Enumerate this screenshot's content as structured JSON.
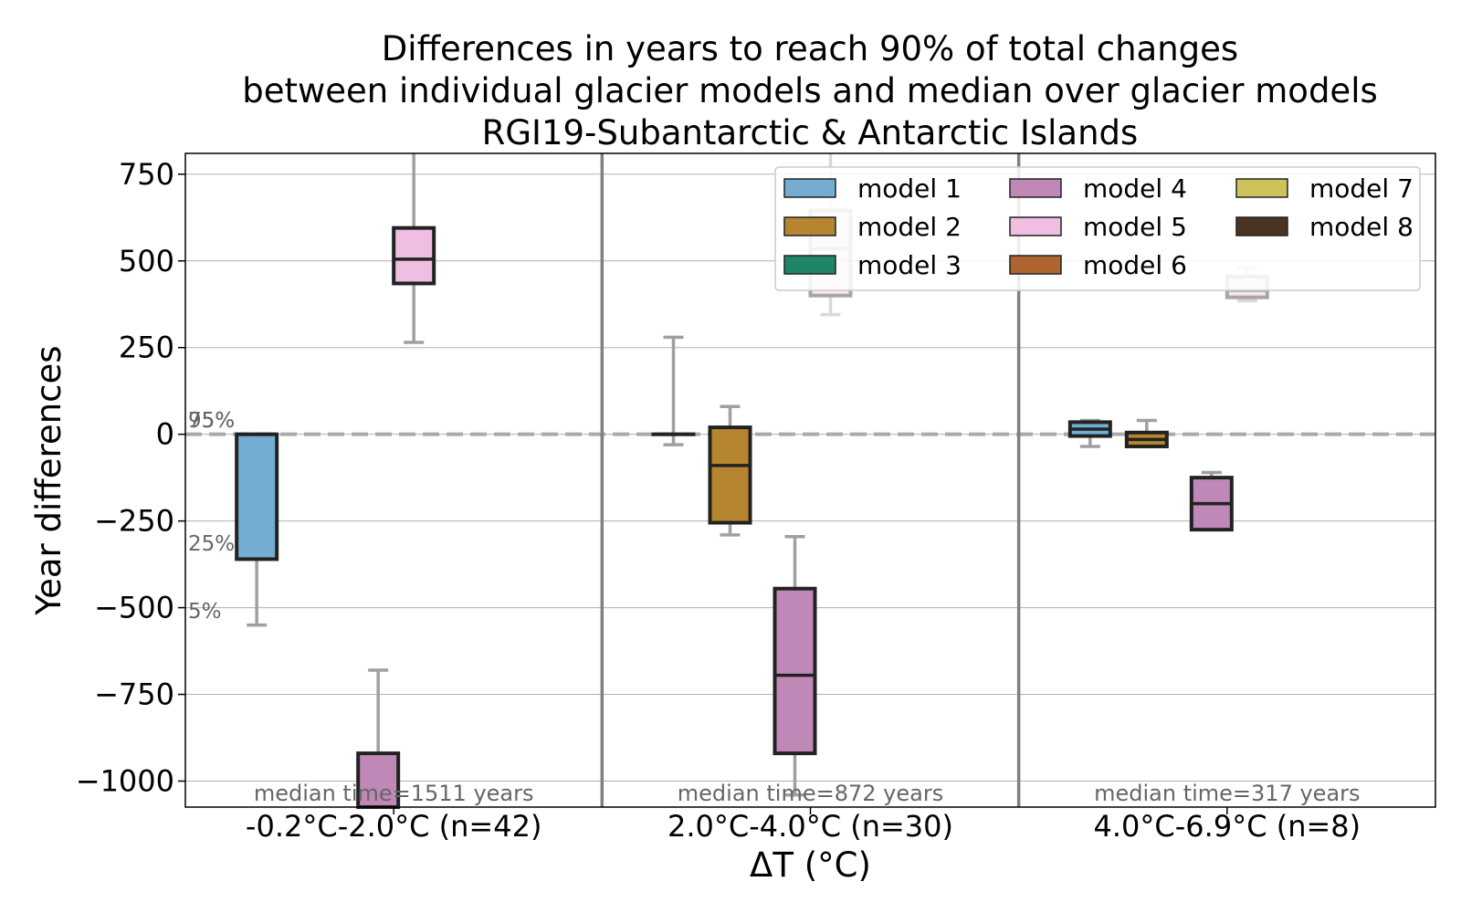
{
  "chart_data": {
    "type": "box",
    "title_lines": [
      "Differences in years to reach 90% of total changes",
      "between individual glacier models and median over glacier models",
      "RGI19-Subantarctic & Antarctic Islands"
    ],
    "xlabel": "ΔT (°C)",
    "ylabel": "Year differences",
    "ylim": [
      -1075,
      810
    ],
    "yticks": [
      750,
      500,
      250,
      0,
      -250,
      -500,
      -750,
      -1000
    ],
    "ytick_labels": [
      "750",
      "500",
      "250",
      "0",
      "−250",
      "−500",
      "−750",
      "−1000"
    ],
    "grid": "horizontal",
    "reference_line": 0,
    "percentile_labels": [
      {
        "text": "95%",
        "y": 20
      },
      {
        "text": "75%",
        "y": 20
      },
      {
        "text": "25%",
        "y": -335
      },
      {
        "text": "5%",
        "y": -530
      }
    ],
    "groups": [
      {
        "label": "-0.2°C-2.0°C (n=42)",
        "annotation": "median time=1511 years"
      },
      {
        "label": "2.0°C-4.0°C (n=30)",
        "annotation": "median time=872 years"
      },
      {
        "label": "4.0°C-6.9°C (n=8)",
        "annotation": "median time=317 years"
      }
    ],
    "legend": {
      "placement": "top-right",
      "entries": [
        {
          "name": "model 1",
          "color": "#74add1"
        },
        {
          "name": "model 2",
          "color": "#b5862f"
        },
        {
          "name": "model 3",
          "color": "#1f8566"
        },
        {
          "name": "model 4",
          "color": "#c088b7"
        },
        {
          "name": "model 5",
          "color": "#efbee0"
        },
        {
          "name": "model 6",
          "color": "#ad6431"
        },
        {
          "name": "model 7",
          "color": "#cdc35a"
        },
        {
          "name": "model 8",
          "color": "#4a3320"
        }
      ]
    },
    "boxes": [
      {
        "group": 0,
        "model": 1,
        "q1": -360,
        "median": 0,
        "q3": 0,
        "whislo": -550,
        "whishi": 0,
        "faded": false
      },
      {
        "group": 0,
        "model": 4,
        "q1": -1075,
        "median": -1075,
        "q3": -920,
        "whislo": -1075,
        "whishi": -680,
        "faded": false
      },
      {
        "group": 0,
        "model": 5,
        "q1": 435,
        "median": 505,
        "q3": 595,
        "whislo": 265,
        "whishi": 810,
        "faded": false
      },
      {
        "group": 1,
        "model": 1,
        "q1": 0,
        "median": 0,
        "q3": 0,
        "whislo": -30,
        "whishi": 280,
        "faded": false
      },
      {
        "group": 1,
        "model": 2,
        "q1": -255,
        "median": -90,
        "q3": 20,
        "whislo": -290,
        "whishi": 80,
        "faded": false
      },
      {
        "group": 1,
        "model": 4,
        "q1": -920,
        "median": -695,
        "q3": -445,
        "whislo": -1040,
        "whishi": -295,
        "faded": false
      },
      {
        "group": 1,
        "model": 5,
        "q1": 400,
        "median": 535,
        "q3": 645,
        "whislo": 345,
        "whishi": 810,
        "faded": true
      },
      {
        "group": 2,
        "model": 1,
        "q1": -5,
        "median": 15,
        "q3": 35,
        "whislo": -35,
        "whishi": 40,
        "faded": false
      },
      {
        "group": 2,
        "model": 2,
        "q1": -35,
        "median": -15,
        "q3": 5,
        "whislo": -35,
        "whishi": 40,
        "faded": false
      },
      {
        "group": 2,
        "model": 4,
        "q1": -275,
        "median": -200,
        "q3": -125,
        "whislo": -275,
        "whishi": -110,
        "faded": false
      },
      {
        "group": 2,
        "model": 5,
        "q1": 395,
        "median": 415,
        "q3": 455,
        "whislo": 385,
        "whishi": 480,
        "faded": true
      }
    ]
  }
}
